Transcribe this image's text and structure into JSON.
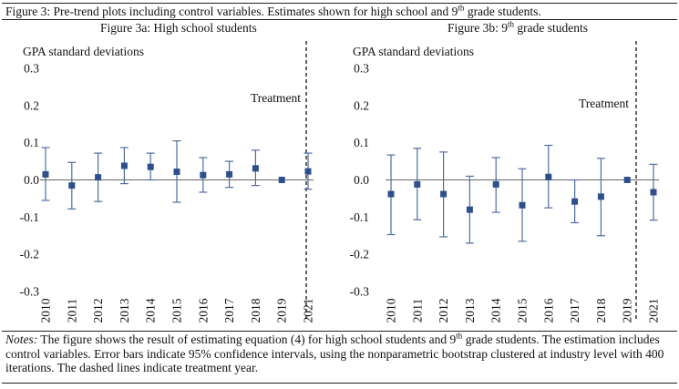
{
  "figure": {
    "title": "Figure 3: Pre-trend plots including control variables. Estimates shown for high school and 9th grade students.",
    "notes_label": "Notes:",
    "notes_text": " The figure shows the result of estimating equation (4) for high school students and 9th grade students. The estimation includes control variables. Error bars indicate 95% confidence intervals, using the nonparametric bootstrap clustered at industry level with 400 iterations. The dashed lines indicate treatment year."
  },
  "chart_data": [
    {
      "type": "scatter",
      "title": "Figure 3a: High school students",
      "ylabel": "GPA standard deviations",
      "xlabel": "",
      "annotation": "Treatment",
      "ylim": [
        -0.3,
        0.3
      ],
      "yticks": [
        "0.3",
        "0.2",
        "0.1",
        "0.0",
        "-0.1",
        "-0.2",
        "-0.3"
      ],
      "categories": [
        "2010",
        "2011",
        "2012",
        "2013",
        "2014",
        "2015",
        "2016",
        "2017",
        "2018",
        "2019",
        "2021"
      ],
      "treatment_after": "2019",
      "estimate": [
        0.015,
        -0.015,
        0.007,
        0.038,
        0.035,
        0.022,
        0.013,
        0.015,
        0.031,
        0.0,
        0.023
      ],
      "ci_low": [
        -0.055,
        -0.078,
        -0.058,
        -0.01,
        0.0,
        -0.06,
        -0.033,
        -0.02,
        -0.015,
        0.0,
        -0.025
      ],
      "ci_high": [
        0.087,
        0.047,
        0.072,
        0.087,
        0.072,
        0.105,
        0.06,
        0.05,
        0.08,
        0.0,
        0.072
      ],
      "grid": false,
      "marker_color": "#2e4f8c",
      "errorbar_color": "#4e6e9e"
    },
    {
      "type": "scatter",
      "title": "Figure 3b: 9th grade students",
      "ylabel": "GPA standard deviations",
      "xlabel": "",
      "annotation": "Treatment",
      "ylim": [
        -0.3,
        0.3
      ],
      "yticks": [
        "0.3",
        "0.2",
        "0.1",
        "0.0",
        "-0.1",
        "-0.2",
        "-0.3"
      ],
      "categories": [
        "2010",
        "2011",
        "2012",
        "2013",
        "2014",
        "2015",
        "2016",
        "2017",
        "2018",
        "2019",
        "2021"
      ],
      "treatment_after": "2019",
      "estimate": [
        -0.038,
        -0.012,
        -0.038,
        -0.08,
        -0.012,
        -0.068,
        0.008,
        -0.058,
        -0.045,
        0.0,
        -0.033
      ],
      "ci_low": [
        -0.147,
        -0.107,
        -0.153,
        -0.17,
        -0.087,
        -0.165,
        -0.075,
        -0.115,
        -0.15,
        0.0,
        -0.108
      ],
      "ci_high": [
        0.067,
        0.085,
        0.075,
        0.01,
        0.06,
        0.03,
        0.093,
        0.0,
        0.058,
        0.0,
        0.042
      ],
      "grid": false,
      "marker_color": "#2e4f8c",
      "errorbar_color": "#4e6e9e"
    }
  ]
}
